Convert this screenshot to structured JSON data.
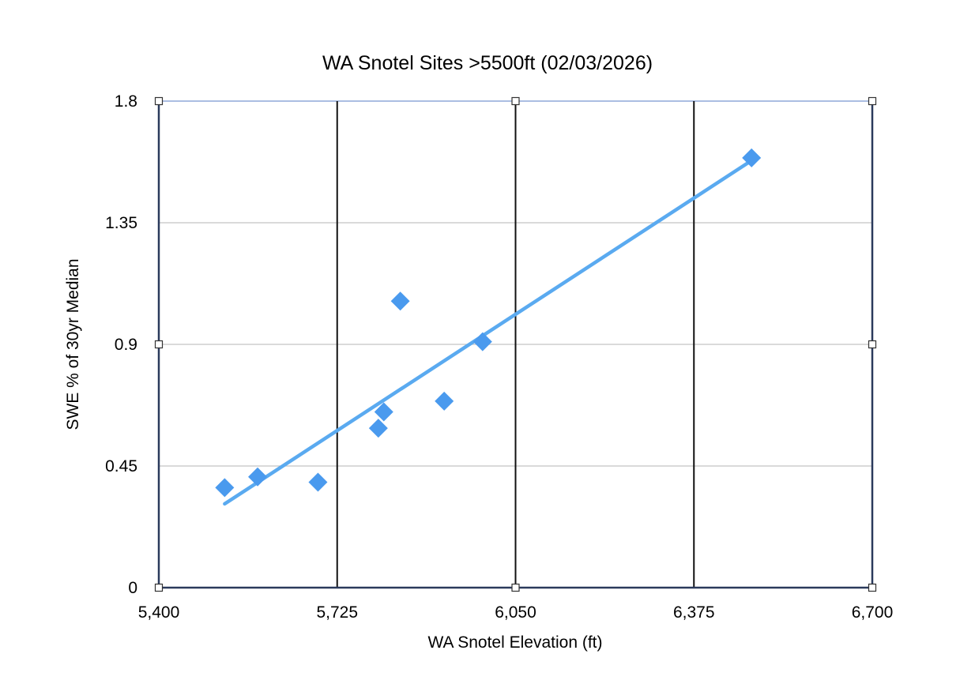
{
  "chart_data": {
    "type": "scatter",
    "title": "WA Snotel Sites >5500ft (02/03/2026)",
    "xlabel": "WA Snotel Elevation (ft)",
    "ylabel": "SWE % of 30yr Median",
    "xlim": [
      5400,
      6700
    ],
    "ylim": [
      0,
      1.8
    ],
    "x_ticks": [
      "5,400",
      "5,725",
      "6,050",
      "6,375",
      "6,700"
    ],
    "y_ticks": [
      "0",
      "0.45",
      "0.9",
      "1.35",
      "1.8"
    ],
    "x_tick_values": [
      5400,
      5725,
      6050,
      6375,
      6700
    ],
    "y_tick_values": [
      0,
      0.45,
      0.9,
      1.35,
      1.8
    ],
    "grid": {
      "horizontal": true,
      "vertical": true
    },
    "legend": "none",
    "series": [
      {
        "x": [
          5520,
          5580,
          5690,
          5800,
          5810,
          5840,
          5920,
          5990,
          6480
        ],
        "y": [
          0.37,
          0.41,
          0.39,
          0.59,
          0.65,
          1.06,
          0.69,
          0.91,
          1.59
        ],
        "color": "#4a9aee",
        "marker": "diamond"
      }
    ],
    "trendline": {
      "type": "linear",
      "x": [
        5520,
        6480
      ],
      "y": [
        0.31,
        1.58
      ],
      "color": "#5aaaf0"
    }
  }
}
